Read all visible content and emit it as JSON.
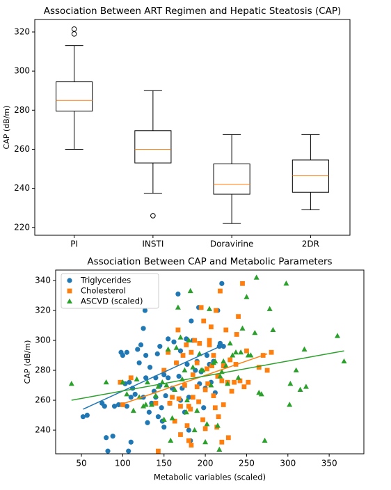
{
  "chart_data": [
    {
      "type": "box",
      "title": "Association Between ART Regimen and Hepatic Steatosis (CAP)",
      "ylabel": "CAP (dB/m)",
      "categories": [
        "PI",
        "INSTI",
        "Doravirine",
        "2DR"
      ],
      "boxes": [
        {
          "whislo": 260,
          "q1": 279.5,
          "med": 285,
          "q3": 294.5,
          "whishi": 313,
          "fliers": [
            319,
            321.5
          ]
        },
        {
          "whislo": 237.5,
          "q1": 253,
          "med": 260,
          "q3": 269.5,
          "whishi": 290,
          "fliers": [
            226
          ]
        },
        {
          "whislo": 222,
          "q1": 237,
          "med": 242,
          "q3": 252.5,
          "whishi": 267.5,
          "fliers": []
        },
        {
          "whislo": 229,
          "q1": 238,
          "med": 246.5,
          "q3": 254.5,
          "whishi": 267.5,
          "fliers": []
        }
      ],
      "color": "#000000",
      "median_color": "#ff7f0e",
      "ylim": [
        216,
        326.4
      ],
      "yticks": [
        220,
        240,
        260,
        280,
        300,
        320
      ]
    },
    {
      "type": "scatter",
      "title": "Association Between CAP and Metabolic Parameters",
      "xlabel": "Metabolic variables (scaled)",
      "ylabel": "CAP (dB/m)",
      "legend": "upper left",
      "xlim": [
        18.8,
        392
      ],
      "xticks": [
        50,
        100,
        150,
        200,
        250,
        300,
        350
      ],
      "ylim": [
        224.2,
        347
      ],
      "yticks": [
        240,
        260,
        280,
        300,
        320,
        340
      ],
      "series": [
        {
          "name": "Triglycerides",
          "color": "#1f77b4",
          "marker": "circle",
          "x": [
            52,
            57,
            75,
            78,
            80,
            82,
            88,
            90,
            95,
            98,
            100,
            103,
            105,
            105,
            107,
            108,
            110,
            110,
            112,
            115,
            118,
            120,
            122,
            125,
            125,
            127,
            128,
            128,
            130,
            132,
            133,
            135,
            138,
            140,
            140,
            142,
            143,
            145,
            145,
            147,
            148,
            150,
            150,
            152,
            155,
            155,
            157,
            160,
            162,
            165,
            167,
            168,
            170,
            170,
            172,
            175,
            177,
            178,
            180,
            180,
            182,
            183,
            185,
            188,
            190,
            192,
            193,
            195,
            198,
            200,
            202,
            205,
            207,
            210,
            212,
            215,
            217,
            218,
            220,
            222
          ],
          "y": [
            249,
            250,
            258,
            256,
            235,
            226,
            236,
            256,
            257,
            292,
            290,
            271,
            292,
            256,
            226,
            272,
            232,
            262,
            268,
            264,
            294,
            285,
            297,
            262,
            308,
            320,
            290,
            275,
            245,
            252,
            282,
            258,
            266,
            275,
            262,
            291,
            249,
            296,
            270,
            255,
            246,
            242,
            277,
            263,
            301,
            275,
            258,
            268,
            299,
            285,
            331,
            276,
            293,
            260,
            268,
            252,
            301,
            284,
            262,
            240,
            233,
            313,
            300,
            280,
            286,
            322,
            271,
            279,
            255,
            268,
            290,
            284,
            272,
            286,
            265,
            320,
            296,
            298,
            338,
            296
          ],
          "trend": {
            "x": [
              52,
              222
            ],
            "y": [
              254,
              297
            ]
          }
        },
        {
          "name": "Cholesterol",
          "color": "#ff7f0e",
          "marker": "square",
          "x": [
            97,
            100,
            110,
            140,
            143,
            150,
            155,
            157,
            160,
            163,
            165,
            167,
            168,
            170,
            170,
            173,
            175,
            177,
            178,
            180,
            180,
            182,
            183,
            183,
            185,
            185,
            187,
            190,
            190,
            192,
            193,
            195,
            197,
            198,
            200,
            200,
            202,
            203,
            205,
            205,
            207,
            208,
            210,
            210,
            212,
            213,
            214,
            215,
            216,
            218,
            220,
            220,
            222,
            222,
            225,
            227,
            228,
            230,
            232,
            235,
            237,
            238,
            240,
            242,
            245,
            247,
            250,
            252,
            265,
            270,
            275,
            280
          ],
          "y": [
            272,
            257,
            275,
            258,
            226,
            280,
            292,
            258,
            262,
            246,
            285,
            307,
            261,
            237,
            256,
            290,
            270,
            297,
            243,
            256,
            233,
            254,
            230,
            292,
            262,
            277,
            300,
            285,
            269,
            259,
            298,
            322,
            247,
            313,
            267,
            241,
            281,
            271,
            300,
            297,
            309,
            283,
            290,
            263,
            255,
            320,
            242,
            276,
            249,
            333,
            232,
            273,
            257,
            283,
            307,
            272,
            235,
            287,
            266,
            272,
            284,
            304,
            316,
            273,
            338,
            269,
            293,
            272,
            282,
            290,
            280,
            292
          ],
          "trend": {
            "x": [
              97,
              275
            ],
            "y": [
              257,
              291
            ]
          }
        },
        {
          "name": "ASCVD (scaled)",
          "color": "#2ca02c",
          "marker": "triangle",
          "x": [
            38,
            80,
            100,
            105,
            113,
            117,
            120,
            125,
            128,
            130,
            135,
            140,
            143,
            148,
            150,
            153,
            155,
            158,
            160,
            163,
            165,
            167,
            170,
            172,
            175,
            177,
            178,
            180,
            182,
            185,
            187,
            190,
            193,
            195,
            197,
            200,
            202,
            205,
            207,
            210,
            212,
            215,
            217,
            218,
            220,
            222,
            225,
            227,
            230,
            233,
            237,
            240,
            243,
            245,
            250,
            252,
            255,
            260,
            262,
            265,
            268,
            272,
            278,
            282,
            298,
            302,
            303,
            310,
            315,
            320,
            322,
            360,
            368
          ],
          "y": [
            271,
            272,
            272,
            264,
            253,
            274,
            262,
            256,
            257,
            272,
            257,
            263,
            269,
            272,
            247,
            270,
            294,
            233,
            248,
            267,
            295,
            322,
            302,
            274,
            280,
            252,
            260,
            300,
            333,
            282,
            240,
            253,
            291,
            280,
            280,
            232,
            244,
            321,
            270,
            285,
            286,
            243,
            227,
            276,
            279,
            286,
            283,
            271,
            298,
            290,
            292,
            275,
            292,
            308,
            329,
            290,
            290,
            305,
            342,
            265,
            264,
            233,
            321,
            307,
            338,
            257,
            271,
            280,
            267,
            294,
            269,
            303,
            286
          ],
          "trend": {
            "x": [
              38,
              368
            ],
            "y": [
              260,
              293
            ]
          }
        }
      ]
    }
  ]
}
